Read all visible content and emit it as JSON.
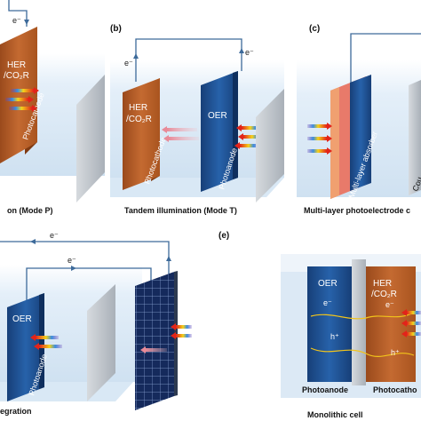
{
  "panels": {
    "a": {
      "caption": "on (Mode P)",
      "electrode_label_line1": "HER",
      "electrode_label_line2": "/CO₂R",
      "electrode_name": "Photocathode",
      "electron": "e⁻"
    },
    "b": {
      "letter": "(b)",
      "caption": "Tandem illumination (Mode T)",
      "electron_left": "e⁻",
      "electron_right": "e⁻",
      "cathode_label_line1": "HER",
      "cathode_label_line2": "/CO₂R",
      "cathode_name": "Photocathode",
      "anode_label": "OER",
      "anode_name": "Photoanode"
    },
    "c": {
      "letter": "(c)",
      "caption": "Multi-layer photoelectrode c",
      "absorber_name": "Multi-layer absorber",
      "counter_name": "Cou"
    },
    "d": {
      "caption": "egration",
      "electron_top": "e⁻",
      "electron_inner": "e⁻",
      "anode_label": "OER",
      "anode_name": "Photoanode"
    },
    "e": {
      "letter": "(e)",
      "caption": "Monolithic cell",
      "anode_label": "OER",
      "cathode_label_line1": "HER",
      "cathode_label_line2": "/CO₂R",
      "electron_left": "e⁻",
      "electron_right": "e⁻",
      "hole_left": "h⁺",
      "hole_right": "h⁺",
      "anode_name": "Photoanode",
      "cathode_name": "Photocatho"
    }
  },
  "colors": {
    "photocathode": "#b8612a",
    "photoanode": "#1d4f8f",
    "membrane": "#b9bfc6",
    "circuit": "#3d6a9a",
    "box_fill": "#e6f1fa"
  }
}
